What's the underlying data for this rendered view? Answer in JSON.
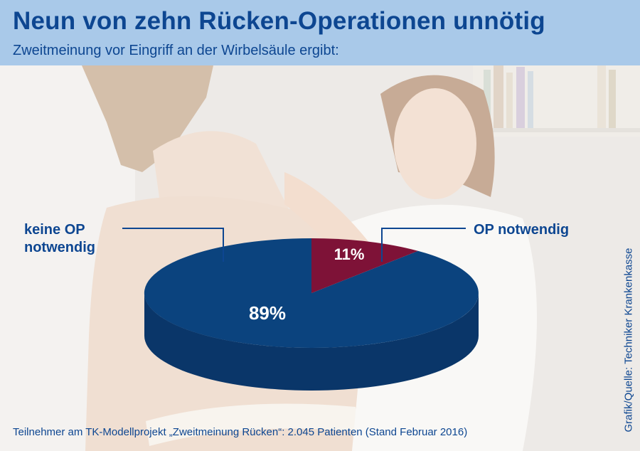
{
  "header": {
    "title": "Neun von zehn Rücken-Operationen unnötig",
    "subtitle": "Zweitmeinung vor Eingriff an der Wirbelsäule ergibt:"
  },
  "footer": {
    "note": "Teilnehmer am TK-Modellprojekt „Zweitmeinung Rücken“: 2.045 Patienten (Stand Februar 2016)"
  },
  "source_credit": "Grafik/Quelle: Techniker Krankenkasse",
  "colors": {
    "header_bg": "#a9c9e9",
    "text_blue": "#0d4691",
    "pie_blue_top": "#0b437e",
    "pie_blue_side": "#0a3669",
    "pie_red_top": "#7e1237",
    "pie_red_side": "#5e0b28"
  },
  "chart_data": {
    "type": "pie",
    "title": "Neun von zehn Rücken-Operationen unnötig",
    "subtitle": "Zweitmeinung vor Eingriff an der Wirbelsäule ergibt:",
    "slices": [
      {
        "label_lines": [
          "keine OP",
          "notwendig"
        ],
        "value": 89,
        "value_label": "89%"
      },
      {
        "label_lines": [
          "OP notwendig"
        ],
        "value": 11,
        "value_label": "11%"
      }
    ],
    "legend": "none",
    "style": "3d"
  }
}
